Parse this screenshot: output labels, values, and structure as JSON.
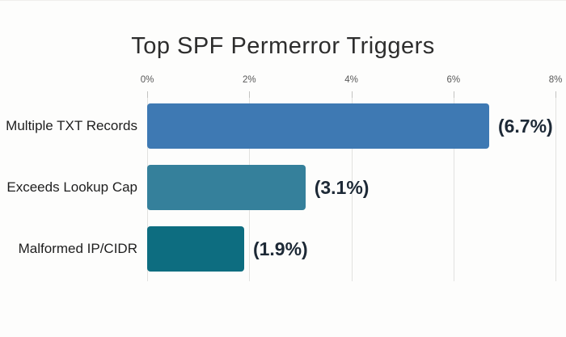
{
  "page": {
    "background_color": "#fdfdfc"
  },
  "chart_data": {
    "type": "bar",
    "orientation": "horizontal",
    "title": "Top SPF Permerror Triggers",
    "categories": [
      "Multiple TXT Records",
      "Exceeds Lookup Cap",
      "Malformed IP/CIDR"
    ],
    "values": [
      6.7,
      3.1,
      1.9
    ],
    "data_labels": [
      "(6.7%)",
      "(3.1%)",
      "(1.9%)"
    ],
    "bar_colors": [
      "#3e79b3",
      "#35809b",
      "#0d6d80"
    ],
    "x_tick_labels": [
      "0%",
      "2%",
      "4%",
      "6%",
      "8%"
    ],
    "x_tick_values": [
      0,
      2,
      4,
      6,
      8
    ],
    "xlim": [
      0,
      8
    ],
    "xlabel": "",
    "ylabel": "",
    "grid": true,
    "legend": false,
    "styles": {
      "title_color": "#2d2d2d",
      "category_label_color": "#1e1e1e",
      "value_label_color": "#1d2936",
      "grid_color": "#e2e2e0",
      "tick_label_color": "#585858"
    }
  }
}
